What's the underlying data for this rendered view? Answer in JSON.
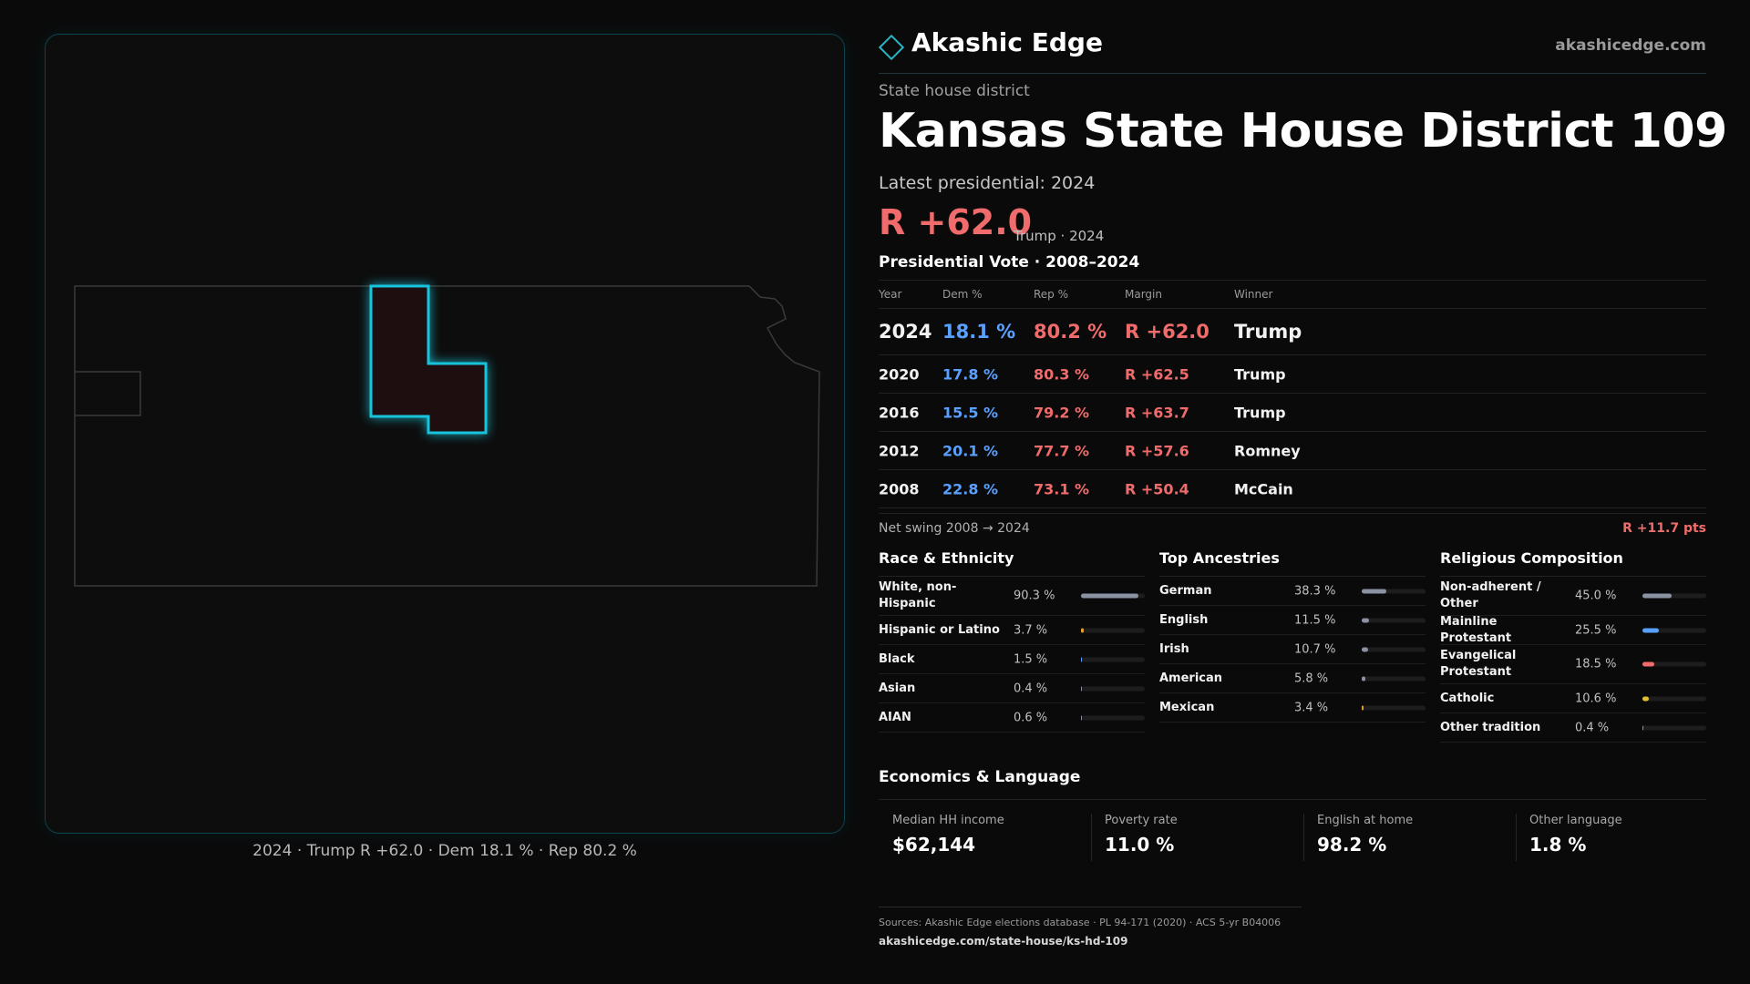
{
  "map": {
    "caption": "2024 · Trump R +62.0 · Dem 18.1 % · Rep 80.2 %"
  },
  "brand": {
    "name": "Akashic Edge",
    "url": "akashicedge.com",
    "accent": "#27b6c9"
  },
  "header": {
    "kicker": "State house district",
    "title": "Kansas State House District 109",
    "latest": "Latest presidential: 2024",
    "margin": "R +62.0",
    "margin_note": "Trump · 2024"
  },
  "vote_table": {
    "title": "Presidential Vote · 2008–2024",
    "columns": [
      "Year",
      "Dem %",
      "Rep %",
      "Margin",
      "Winner"
    ],
    "rows": [
      {
        "year": "2024",
        "dem": "18.1 %",
        "rep": "80.2 %",
        "margin": "R +62.0",
        "winner": "Trump"
      },
      {
        "year": "2020",
        "dem": "17.8 %",
        "rep": "80.3 %",
        "margin": "R +62.5",
        "winner": "Trump"
      },
      {
        "year": "2016",
        "dem": "15.5 %",
        "rep": "79.2 %",
        "margin": "R +63.7",
        "winner": "Trump"
      },
      {
        "year": "2012",
        "dem": "20.1 %",
        "rep": "77.7 %",
        "margin": "R +57.6",
        "winner": "Romney"
      },
      {
        "year": "2008",
        "dem": "22.8 %",
        "rep": "73.1 %",
        "margin": "R +50.4",
        "winner": "McCain"
      }
    ],
    "swing_label": "Net swing 2008 → 2024",
    "swing_value": "R +11.7 pts"
  },
  "race": {
    "title": "Race & Ethnicity",
    "items": [
      {
        "label": "White, non-Hispanic",
        "value": "90.3 %",
        "pct": 90.3,
        "color": "#8b93a3"
      },
      {
        "label": "Hispanic or Latino",
        "value": "3.7 %",
        "pct": 3.7,
        "color": "#e0a030"
      },
      {
        "label": "Black",
        "value": "1.5 %",
        "pct": 1.5,
        "color": "#5aa0ff"
      },
      {
        "label": "Asian",
        "value": "0.4 %",
        "pct": 0.4,
        "color": "#8b93a3"
      },
      {
        "label": "AIAN",
        "value": "0.6 %",
        "pct": 0.6,
        "color": "#8b93a3"
      }
    ]
  },
  "ancestry": {
    "title": "Top Ancestries",
    "items": [
      {
        "label": "German",
        "value": "38.3 %",
        "pct": 38.3,
        "color": "#8b93a3"
      },
      {
        "label": "English",
        "value": "11.5 %",
        "pct": 11.5,
        "color": "#8b93a3"
      },
      {
        "label": "Irish",
        "value": "10.7 %",
        "pct": 10.7,
        "color": "#8b93a3"
      },
      {
        "label": "American",
        "value": "5.8 %",
        "pct": 5.8,
        "color": "#8b93a3"
      },
      {
        "label": "Mexican",
        "value": "3.4 %",
        "pct": 3.4,
        "color": "#e0a030"
      }
    ]
  },
  "religion": {
    "title": "Religious Composition",
    "items": [
      {
        "label": "Non-adherent / Other",
        "value": "45.0 %",
        "pct": 45.0,
        "color": "#8b93a3"
      },
      {
        "label": "Mainline Protestant",
        "value": "25.5 %",
        "pct": 25.5,
        "color": "#5aa0ff"
      },
      {
        "label": "Evangelical Protestant",
        "value": "18.5 %",
        "pct": 18.5,
        "color": "#f06b6b"
      },
      {
        "label": "Catholic",
        "value": "10.6 %",
        "pct": 10.6,
        "color": "#e0c030"
      },
      {
        "label": "Other tradition",
        "value": "0.4 %",
        "pct": 0.4,
        "color": "#8b93a3"
      }
    ]
  },
  "economics": {
    "title": "Economics & Language",
    "items": [
      {
        "label": "Median HH income",
        "value": "$62,144"
      },
      {
        "label": "Poverty rate",
        "value": "11.0 %"
      },
      {
        "label": "English at home",
        "value": "98.2 %"
      },
      {
        "label": "Other language",
        "value": "1.8 %"
      }
    ]
  },
  "footer": {
    "sources": "Sources: Akashic Edge elections database · PL 94-171 (2020) · ACS 5-yr B04006",
    "url": "akashicedge.com/state-house/ks-hd-109"
  }
}
